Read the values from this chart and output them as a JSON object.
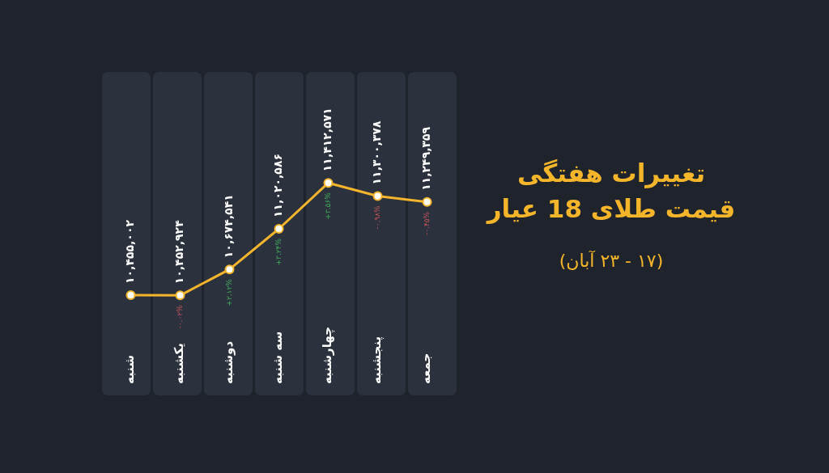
{
  "chart_data": {
    "type": "line",
    "title": "تغییرات هفتگی قیمت طلای 18 عیار",
    "subtitle": "(۱۷ - ۲۳ آبان)",
    "categories": [
      "شنبه",
      "یکشنبه",
      "دوشنبه",
      "سه شنبه",
      "چهارشنبه",
      "پنجشنبه",
      "جمعه"
    ],
    "series": [
      {
        "color": "#f4b52c",
        "values": [
          10455002,
          10452924,
          10674541,
          11020586,
          11412571,
          11300378,
          11249359
        ],
        "value_labels": [
          "۱۰,۴۵۵,۰۰۲",
          "۱۰,۴۵۲,۹۲۴",
          "۱۰,۶۷۴,۵۴۱",
          "۱۱,۰۲۰,۵۸۶",
          "۱۱,۴۱۲,۵۷۱",
          "۱۱,۳۰۰,۳۷۸",
          "۱۱,۲۴۹,۳۵۹"
        ]
      }
    ],
    "tick_labels": "x",
    "marker": "circle",
    "line_style": "solid",
    "legend": false,
    "annotations": [
      {
        "text": "-۰.۰۲%",
        "x": "یکشنبه",
        "y": 10452924
      },
      {
        "text": "+۲.۱۲%",
        "x": "دوشنبه",
        "y": 10674541
      },
      {
        "text": "+۳.۲۴%",
        "x": "سه شنبه",
        "y": 11020586
      },
      {
        "text": "+۳.۵۶%",
        "x": "چهارشنبه",
        "y": 11412571
      },
      {
        "text": "-۰.۹۸%",
        "x": "پنجشنبه",
        "y": 11300378
      },
      {
        "text": "-۰.۴۵%",
        "x": "جمعه",
        "y": 11249359
      }
    ]
  }
}
